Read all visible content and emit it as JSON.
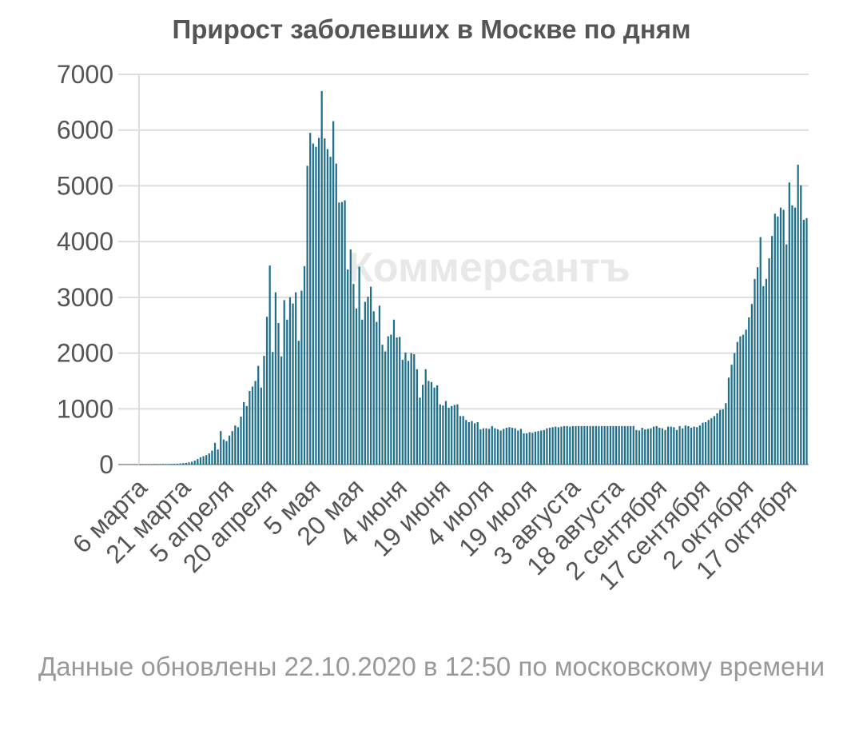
{
  "title": "Прирост заболевших в Москве по дням",
  "watermark": "Коммерсантъ",
  "footnote": "Данные обновлены 22.10.2020 в 12:50 по московскому времени",
  "colors": {
    "bar": "#1f6f8b",
    "grid": "#dddddd",
    "axis": "#555555",
    "title": "#555555",
    "footnote": "#999999"
  },
  "chart_data": {
    "type": "bar",
    "title": "Прирост заболевших в Москве по дням",
    "xlabel": "",
    "ylabel": "",
    "ylim": [
      0,
      7000
    ],
    "yticks": [
      0,
      1000,
      2000,
      3000,
      4000,
      5000,
      6000,
      7000
    ],
    "xticks": [
      "6 марта",
      "21 марта",
      "5 апреля",
      "20 апреля",
      "5 мая",
      "20 мая",
      "4 июня",
      "19 июня",
      "4 июля",
      "19 июля",
      "3 августа",
      "18 августа",
      "2 сентября",
      "17 сентября",
      "2 октября",
      "17 октября"
    ],
    "x_start": "2020-03-06",
    "x_end": "2020-10-22",
    "values": [
      2,
      1,
      1,
      2,
      3,
      3,
      4,
      5,
      5,
      6,
      8,
      10,
      12,
      15,
      20,
      25,
      30,
      40,
      50,
      70,
      100,
      130,
      150,
      170,
      200,
      250,
      390,
      270,
      600,
      450,
      420,
      520,
      600,
      700,
      670,
      860,
      1120,
      1050,
      1320,
      1400,
      1500,
      1770,
      1380,
      1950,
      2650,
      3570,
      2020,
      3090,
      2540,
      1940,
      2950,
      2600,
      3000,
      2890,
      3090,
      2220,
      3120,
      3560,
      5360,
      5950,
      5760,
      5700,
      5860,
      6700,
      5850,
      5660,
      5520,
      6160,
      5400,
      4700,
      4710,
      4740,
      3500,
      3860,
      3240,
      2800,
      3550,
      2600,
      2920,
      3010,
      3190,
      2750,
      2560,
      2850,
      2150,
      2030,
      2300,
      2330,
      2600,
      2280,
      2290,
      1880,
      2010,
      1860,
      2000,
      1980,
      1710,
      1200,
      1430,
      1710,
      1500,
      1480,
      1380,
      1420,
      1080,
      1060,
      1140,
      1020,
      1050,
      1070,
      1080,
      870,
      870,
      800,
      760,
      780,
      740,
      760,
      630,
      650,
      650,
      640,
      690,
      650,
      630,
      610,
      640,
      660,
      670,
      660,
      650,
      610,
      640,
      560,
      560,
      580,
      570,
      590,
      600,
      610,
      620,
      650,
      660,
      670,
      680,
      670,
      680,
      690,
      690,
      680,
      690,
      690,
      690,
      690,
      690,
      690,
      690,
      690,
      690,
      690,
      690,
      690,
      690,
      690,
      690,
      690,
      690,
      690,
      690,
      690,
      690,
      690,
      620,
      610,
      660,
      630,
      640,
      650,
      680,
      690,
      660,
      650,
      620,
      680,
      680,
      670,
      620,
      690,
      650,
      700,
      690,
      660,
      680,
      670,
      700,
      750,
      760,
      800,
      830,
      870,
      920,
      980,
      990,
      1100,
      1560,
      1790,
      2000,
      2200,
      2300,
      2330,
      2420,
      2640,
      2880,
      3330,
      3540,
      4080,
      3200,
      3330,
      3700,
      4100,
      4500,
      4450,
      4610,
      4570,
      3950,
      5060,
      4650,
      4610,
      5380,
      5010,
      4390,
      4420
    ]
  }
}
